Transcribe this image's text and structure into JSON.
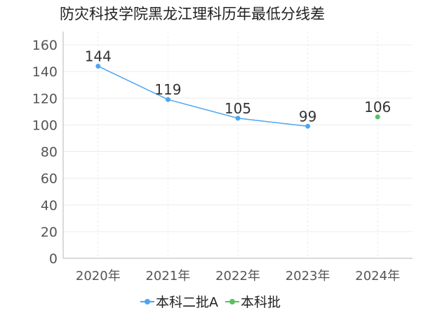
{
  "title": "防灾科技学院黑龙江理科历年最低分线差",
  "colors": {
    "series_a": "#4da6f0",
    "series_b": "#5cbf63",
    "axis": "#b5b5b5",
    "grid": "#ececec",
    "tick_text": "#555555",
    "label_text": "#333333"
  },
  "chart_data": {
    "type": "line",
    "title": "防灾科技学院黑龙江理科历年最低分线差",
    "xlabel": "",
    "ylabel": "",
    "categories": [
      "2020年",
      "2021年",
      "2022年",
      "2023年",
      "2024年"
    ],
    "y_ticks": [
      "0",
      "20",
      "40",
      "60",
      "80",
      "100",
      "120",
      "140",
      "160"
    ],
    "ylim": [
      0,
      170
    ],
    "grid": true,
    "legend_position": "bottom",
    "series": [
      {
        "name": "本科二批A",
        "values": [
          144,
          119,
          105,
          99,
          null
        ],
        "labels": [
          "144",
          "119",
          "105",
          "99",
          ""
        ]
      },
      {
        "name": "本科批",
        "values": [
          null,
          null,
          null,
          null,
          106
        ],
        "labels": [
          "",
          "",
          "",
          "",
          "106"
        ]
      }
    ]
  }
}
